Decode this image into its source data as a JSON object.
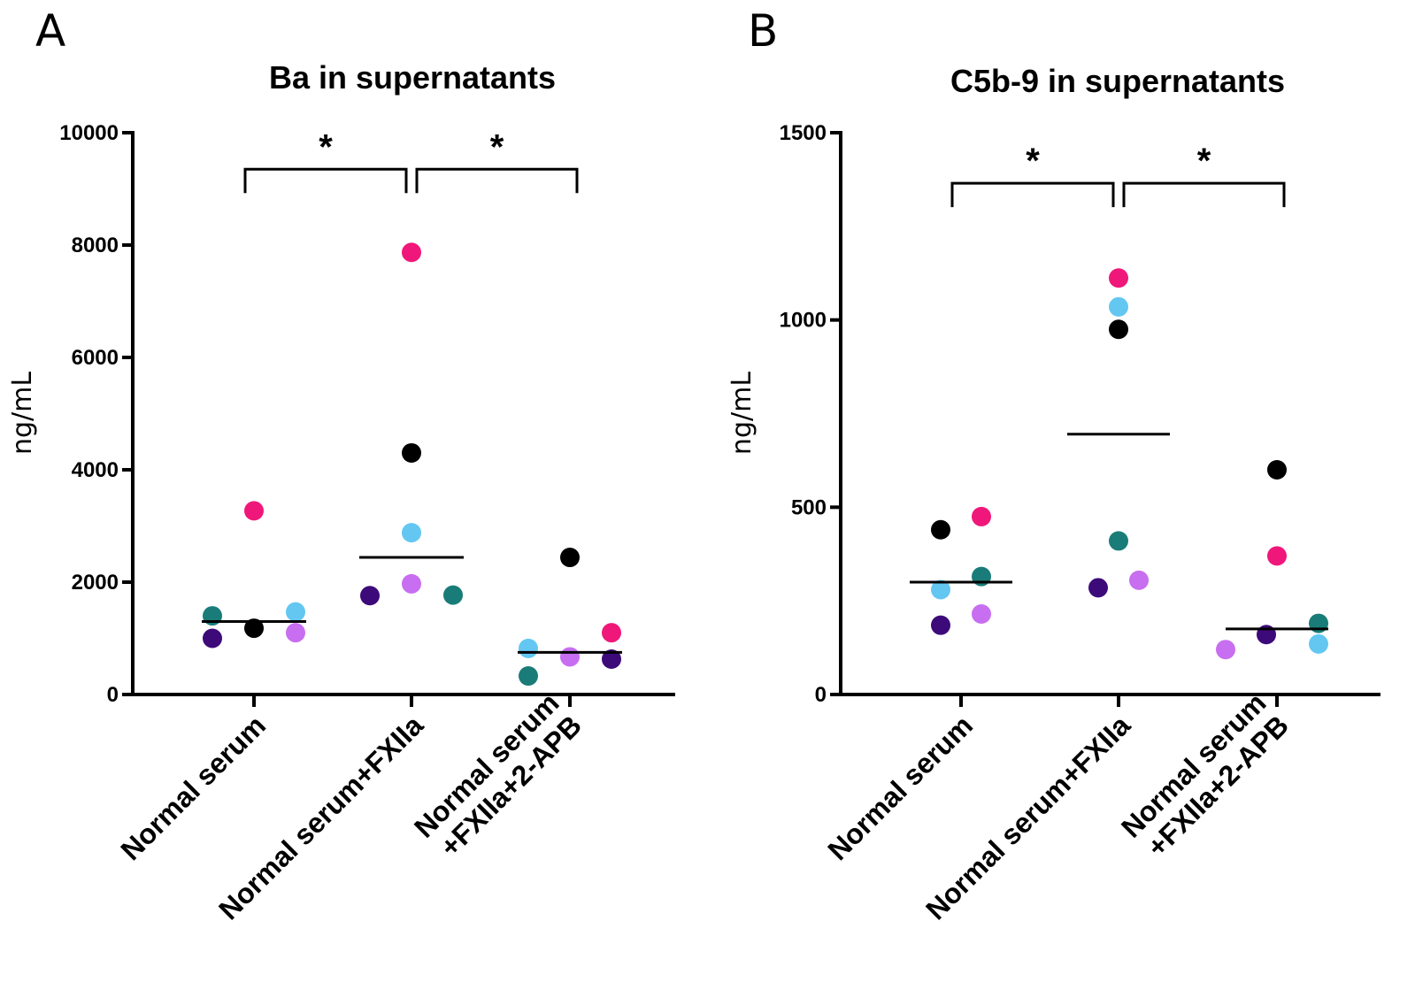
{
  "chart_data": [
    {
      "type": "scatter",
      "panel": "A",
      "title": "Ba in supernatants",
      "ylabel": "ng/mL",
      "xlabel": "",
      "ylim": [
        0,
        10000
      ],
      "yticks": [
        0,
        2000,
        4000,
        6000,
        8000,
        10000
      ],
      "categories": [
        [
          "Normal serum"
        ],
        [
          "Normal serum+FXIIa"
        ],
        [
          "Normal serum",
          "+FXIIa+2-APB"
        ]
      ],
      "groups": [
        {
          "category": "Normal serum",
          "median": 1300,
          "points": [
            {
              "donor": "teal",
              "value": 1400
            },
            {
              "donor": "indigo",
              "value": 1000
            },
            {
              "donor": "magenta",
              "value": 3270
            },
            {
              "donor": "black",
              "value": 1180
            },
            {
              "donor": "skyblue",
              "value": 1470
            },
            {
              "donor": "violet",
              "value": 1100
            }
          ]
        },
        {
          "category": "Normal serum+FXIIa",
          "median": 2440,
          "points": [
            {
              "donor": "indigo",
              "value": 1760
            },
            {
              "donor": "magenta",
              "value": 7870
            },
            {
              "donor": "black",
              "value": 4300
            },
            {
              "donor": "skyblue",
              "value": 2880
            },
            {
              "donor": "violet",
              "value": 1970
            },
            {
              "donor": "teal",
              "value": 1770
            }
          ]
        },
        {
          "category": "Normal serum +FXIIa+2-APB",
          "median": 750,
          "points": [
            {
              "donor": "skyblue",
              "value": 820
            },
            {
              "donor": "teal",
              "value": 330
            },
            {
              "donor": "black",
              "value": 2440
            },
            {
              "donor": "violet",
              "value": 670
            },
            {
              "donor": "magenta",
              "value": 1100
            },
            {
              "donor": "indigo",
              "value": 630
            }
          ]
        }
      ],
      "significance": [
        {
          "from": 0,
          "to": 1,
          "label": "*",
          "y": 9350
        },
        {
          "from": 1,
          "to": 2,
          "label": "*",
          "y": 9350
        }
      ]
    },
    {
      "type": "scatter",
      "panel": "B",
      "title": "C5b-9 in supernatants",
      "ylabel": "ng/mL",
      "xlabel": "",
      "ylim": [
        0,
        1500
      ],
      "yticks": [
        0,
        500,
        1000,
        1500
      ],
      "categories": [
        [
          "Normal serum"
        ],
        [
          "Normal serum+FXIIa"
        ],
        [
          "Normal serum",
          "+FXIIa+2-APB"
        ]
      ],
      "groups": [
        {
          "category": "Normal serum",
          "median": 300,
          "points": [
            {
              "donor": "black",
              "value": 440
            },
            {
              "donor": "skyblue",
              "value": 280
            },
            {
              "donor": "indigo",
              "value": 185
            },
            {
              "donor": "magenta",
              "value": 475
            },
            {
              "donor": "teal",
              "value": 315
            },
            {
              "donor": "violet",
              "value": 215
            }
          ]
        },
        {
          "category": "Normal serum+FXIIa",
          "median": 695,
          "points": [
            {
              "donor": "magenta",
              "value": 1112
            },
            {
              "donor": "skyblue",
              "value": 1035
            },
            {
              "donor": "black",
              "value": 975
            },
            {
              "donor": "teal",
              "value": 410
            },
            {
              "donor": "indigo",
              "value": 285
            },
            {
              "donor": "violet",
              "value": 305
            }
          ]
        },
        {
          "category": "Normal serum +FXIIa+2-APB",
          "median": 175,
          "points": [
            {
              "donor": "black",
              "value": 600
            },
            {
              "donor": "magenta",
              "value": 370
            },
            {
              "donor": "violet",
              "value": 120
            },
            {
              "donor": "indigo",
              "value": 160
            },
            {
              "donor": "teal",
              "value": 190
            },
            {
              "donor": "skyblue",
              "value": 135
            }
          ]
        }
      ],
      "significance": [
        {
          "from": 0,
          "to": 1,
          "label": "*",
          "y": 1365
        },
        {
          "from": 1,
          "to": 2,
          "label": "*",
          "y": 1365
        }
      ]
    }
  ],
  "colors": {
    "black": "#000000",
    "indigo": "#3d0a7a",
    "teal": "#1a7c78",
    "skyblue": "#63c7f2",
    "violet": "#c86ef0",
    "magenta": "#f0177a",
    "axis": "#000000"
  }
}
